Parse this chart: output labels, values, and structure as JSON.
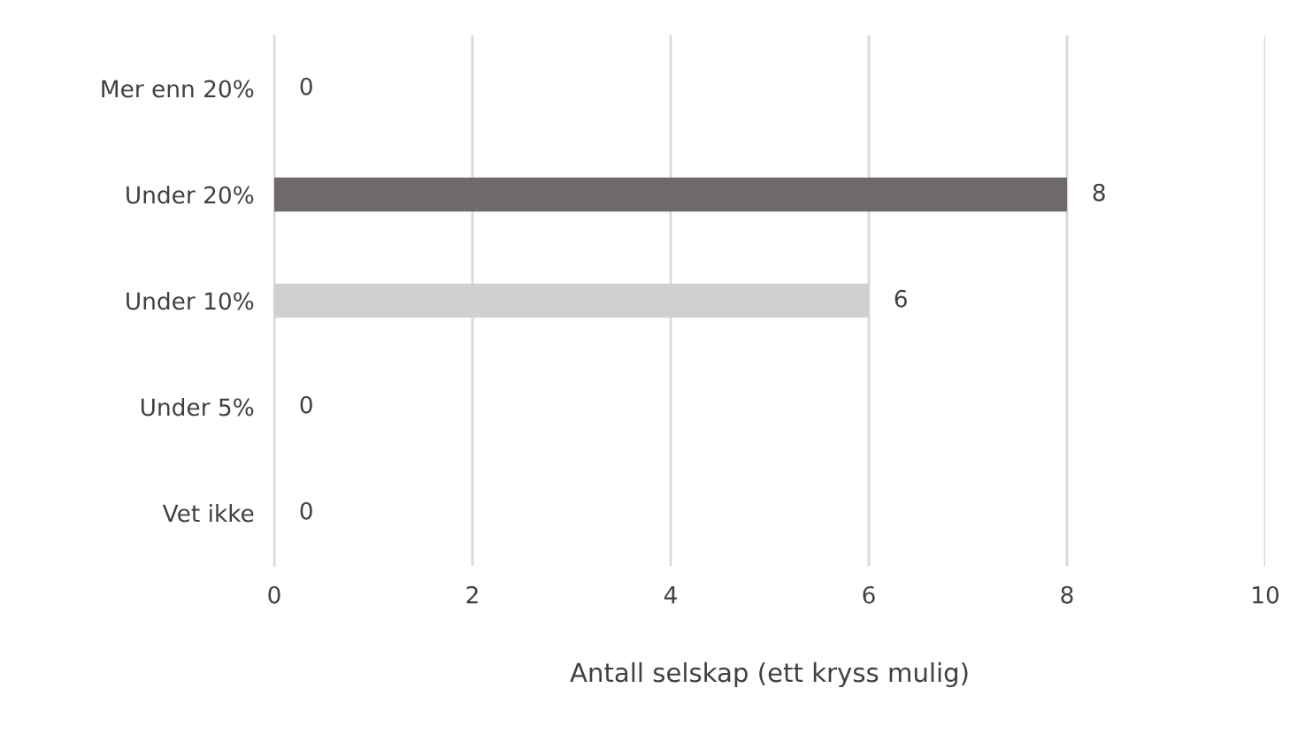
{
  "chart_data": {
    "type": "bar",
    "orientation": "horizontal",
    "xlabel": "Antall selskap (ett kryss mulig)",
    "categories": [
      "Mer enn 20%",
      "Under 20%",
      "Under 10%",
      "Under 5%",
      "Vet ikke"
    ],
    "values": [
      0,
      8,
      6,
      0,
      0
    ],
    "colors": [
      "#a5a5a5",
      "#6e6a6a",
      "#d0d0d0",
      "#a5a5a5",
      "#a5a5a5"
    ],
    "xlim": [
      0,
      10
    ],
    "xticks": [
      0,
      2,
      4,
      6,
      8,
      10
    ],
    "grid": "x",
    "data_labels": true,
    "legend": false
  }
}
